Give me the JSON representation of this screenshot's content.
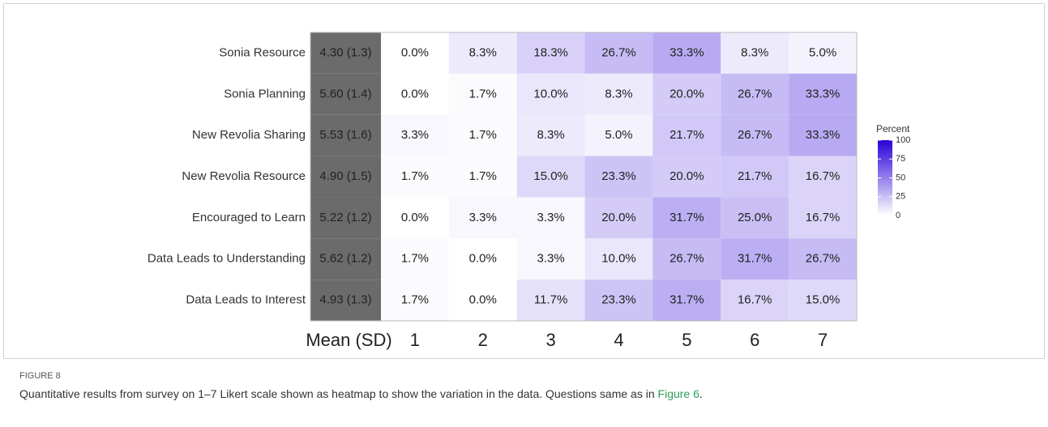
{
  "chart_data": {
    "type": "heatmap",
    "rows": [
      "Sonia Resource",
      "Sonia Planning",
      "New Revolia Sharing",
      "New Revolia Resource",
      "Encouraged to Learn",
      "Data Leads to Understanding",
      "Data Leads to Interest"
    ],
    "mean_header": "Mean (SD)",
    "columns": [
      "1",
      "2",
      "3",
      "4",
      "5",
      "6",
      "7"
    ],
    "means": [
      4.3,
      5.6,
      5.53,
      4.9,
      5.22,
      5.62,
      4.93
    ],
    "sds": [
      1.3,
      1.4,
      1.6,
      1.5,
      1.2,
      1.2,
      1.3
    ],
    "mean_labels": [
      "4.30 (1.3)",
      "5.60 (1.4)",
      "5.53 (1.6)",
      "4.90 (1.5)",
      "5.22 (1.2)",
      "5.62 (1.2)",
      "4.93 (1.3)"
    ],
    "mean_color": "#6b6b6b",
    "values": [
      [
        0.0,
        8.3,
        18.3,
        26.7,
        33.3,
        8.3,
        5.0
      ],
      [
        0.0,
        1.7,
        10.0,
        8.3,
        20.0,
        26.7,
        33.3
      ],
      [
        3.3,
        1.7,
        8.3,
        5.0,
        21.7,
        26.7,
        33.3
      ],
      [
        1.7,
        1.7,
        15.0,
        23.3,
        20.0,
        21.7,
        16.7
      ],
      [
        0.0,
        3.3,
        3.3,
        20.0,
        31.7,
        25.0,
        16.7
      ],
      [
        1.7,
        0.0,
        3.3,
        10.0,
        26.7,
        31.7,
        26.7
      ],
      [
        1.7,
        0.0,
        11.7,
        23.3,
        31.7,
        16.7,
        15.0
      ]
    ],
    "value_labels": [
      [
        "0.0%",
        "8.3%",
        "18.3%",
        "26.7%",
        "33.3%",
        "8.3%",
        "5.0%"
      ],
      [
        "0.0%",
        "1.7%",
        "10.0%",
        "8.3%",
        "20.0%",
        "26.7%",
        "33.3%"
      ],
      [
        "3.3%",
        "1.7%",
        "8.3%",
        "5.0%",
        "21.7%",
        "26.7%",
        "33.3%"
      ],
      [
        "1.7%",
        "1.7%",
        "15.0%",
        "23.3%",
        "20.0%",
        "21.7%",
        "16.7%"
      ],
      [
        "0.0%",
        "3.3%",
        "3.3%",
        "20.0%",
        "31.7%",
        "25.0%",
        "16.7%"
      ],
      [
        "1.7%",
        "0.0%",
        "3.3%",
        "10.0%",
        "26.7%",
        "31.7%",
        "26.7%"
      ],
      [
        "1.7%",
        "0.0%",
        "11.7%",
        "23.3%",
        "31.7%",
        "16.7%",
        "15.0%"
      ]
    ],
    "colorbar": {
      "title": "Percent",
      "lim": [
        0,
        100
      ],
      "ticks": [
        0,
        25,
        50,
        75,
        100
      ],
      "colors": [
        "#ffffff",
        "#2a00d8"
      ]
    }
  },
  "figure_label": "FIGURE 8",
  "caption": [
    "Quantitative results from survey on 1–7 Likert scale shown as heatmap to show the variation in the data. Questions same as in ",
    "Figure 6",
    "."
  ]
}
